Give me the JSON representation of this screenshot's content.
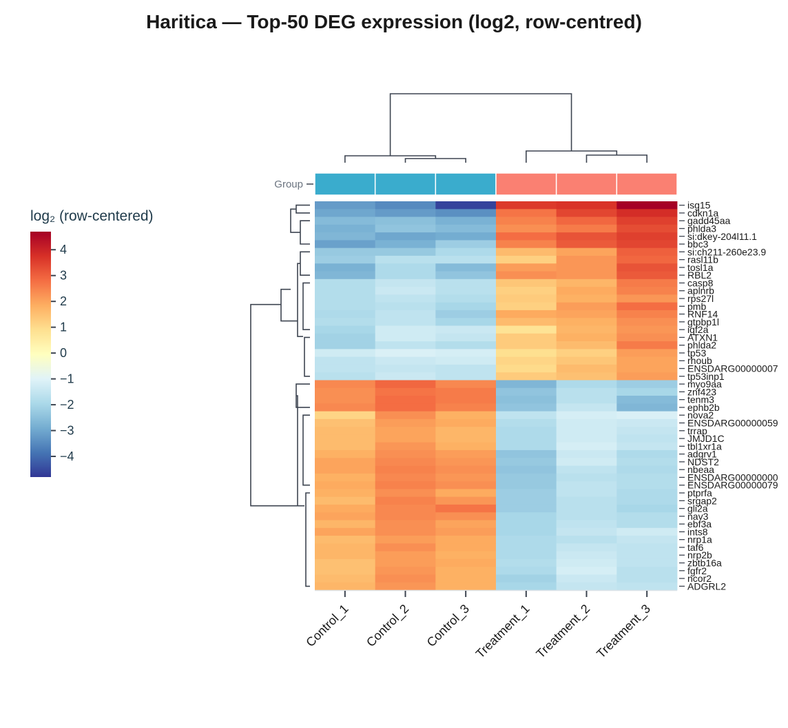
{
  "chart_data": {
    "type": "heatmap",
    "title": "Haritica — Top-50 DEG expression (log2, row-centred)",
    "colorbar": {
      "label": "log₂ (row-centered)",
      "range": [
        -4.8,
        4.7
      ],
      "ticks": [
        4,
        3,
        2,
        1,
        0,
        -1,
        -2,
        -3,
        -4
      ],
      "tick_labels": [
        "4",
        "3",
        "2",
        "1",
        "0",
        "−1",
        "−2",
        "−3",
        "−4"
      ],
      "colormap": "RdYlBu_r"
    },
    "annotation_row": {
      "label": "Group",
      "colors": {
        "Control": "#3aaccd",
        "Treatment": "#fa8072"
      },
      "assignments": [
        "Control",
        "Control",
        "Control",
        "Treatment",
        "Treatment",
        "Treatment"
      ]
    },
    "columns": [
      "Control_1",
      "Control_2",
      "Control_3",
      "Treatment_1",
      "Treatment_2",
      "Treatment_3"
    ],
    "row_labels": [
      "isg15",
      "cdkn1a",
      "gadd45aa",
      "phlda3",
      "si:dkey-204l11.1",
      "bbc3",
      "si:ch211-260e23.9",
      "rasl11b",
      "tosl1a",
      "RBL2",
      "casp8",
      "aplnrb",
      "rps27l",
      "pmb",
      "RNF14",
      "gtpbp1l",
      "igf2a",
      "ATXN1",
      "phlda2",
      "tp53",
      "rhoub",
      "ENSDARG00000007",
      "tp53inp1",
      "myo9aa",
      "znf423",
      "tenm3",
      "ephb2b",
      "nova2",
      "ENSDARG00000059",
      "trrap",
      "JMJD1C",
      "tbl1xr1a",
      "adgrv1",
      "NDST2",
      "nbeaa",
      "ENSDARG00000000",
      "ENSDARG00000079",
      "ptprfa",
      "srgap2",
      "gli2a",
      "nav3",
      "ebf3a",
      "ints8",
      "nrp1a",
      "taf6",
      "nrp2b",
      "zbtb16a",
      "fgfr2",
      "ncor2",
      "ADGRL2"
    ],
    "values": [
      [
        -3.2,
        -3.5,
        -4.6,
        3.6,
        3.7,
        4.7
      ],
      [
        -3.0,
        -3.2,
        -3.4,
        2.7,
        3.4,
        3.8
      ],
      [
        -2.6,
        -2.5,
        -2.8,
        2.5,
        2.9,
        3.5
      ],
      [
        -2.8,
        -2.4,
        -2.6,
        2.3,
        2.6,
        3.3
      ],
      [
        -2.7,
        -3.0,
        -2.9,
        2.8,
        3.2,
        3.5
      ],
      [
        -3.1,
        -2.8,
        -2.2,
        2.5,
        3.1,
        3.4
      ],
      [
        -2.3,
        -2.3,
        -1.9,
        1.6,
        2.0,
        3.0
      ],
      [
        -2.2,
        -1.7,
        -1.7,
        1.2,
        2.2,
        2.9
      ],
      [
        -2.8,
        -1.9,
        -2.6,
        2.1,
        2.2,
        3.2
      ],
      [
        -2.7,
        -1.9,
        -2.4,
        2.3,
        2.2,
        3.1
      ],
      [
        -1.8,
        -1.5,
        -1.7,
        1.4,
        1.7,
        2.6
      ],
      [
        -1.8,
        -1.4,
        -1.7,
        1.2,
        1.9,
        2.5
      ],
      [
        -1.8,
        -1.6,
        -1.8,
        1.3,
        1.8,
        2.2
      ],
      [
        -1.8,
        -1.7,
        -2.0,
        1.2,
        2.1,
        2.8
      ],
      [
        -1.9,
        -1.6,
        -2.2,
        1.9,
        2.0,
        2.5
      ],
      [
        -1.8,
        -1.6,
        -2.0,
        1.6,
        1.8,
        2.3
      ],
      [
        -2.0,
        -1.3,
        -1.4,
        0.8,
        1.7,
        2.2
      ],
      [
        -2.1,
        -1.3,
        -1.5,
        1.3,
        1.8,
        2.3
      ],
      [
        -2.1,
        -1.6,
        -1.8,
        1.3,
        1.6,
        2.6
      ],
      [
        -1.3,
        -1.1,
        -1.2,
        0.9,
        1.2,
        2.1
      ],
      [
        -1.6,
        -1.4,
        -1.3,
        1.1,
        1.4,
        2.0
      ],
      [
        -1.6,
        -1.5,
        -1.6,
        1.0,
        1.6,
        2.0
      ],
      [
        -1.7,
        -1.4,
        -1.6,
        1.3,
        1.5,
        2.1
      ],
      [
        2.4,
        2.9,
        2.4,
        -2.7,
        -1.9,
        -2.2
      ],
      [
        2.3,
        2.7,
        2.6,
        -2.4,
        -1.7,
        -2.0
      ],
      [
        2.3,
        2.8,
        2.6,
        -2.5,
        -1.7,
        -2.6
      ],
      [
        2.4,
        2.8,
        2.5,
        -2.4,
        -1.5,
        -2.7
      ],
      [
        1.1,
        2.3,
        1.8,
        -1.6,
        -1.2,
        -1.1
      ],
      [
        1.5,
        2.1,
        1.9,
        -1.8,
        -1.3,
        -1.4
      ],
      [
        1.6,
        2.0,
        1.7,
        -1.9,
        -1.3,
        -1.5
      ],
      [
        1.6,
        2.0,
        1.7,
        -1.9,
        -1.3,
        -1.6
      ],
      [
        1.6,
        2.2,
        1.8,
        -1.9,
        -1.2,
        -1.5
      ],
      [
        1.8,
        2.3,
        2.1,
        -2.4,
        -1.4,
        -1.9
      ],
      [
        2.0,
        2.4,
        2.2,
        -2.3,
        -1.3,
        -1.8
      ],
      [
        2.0,
        2.5,
        2.3,
        -2.4,
        -1.6,
        -1.9
      ],
      [
        1.8,
        2.4,
        2.2,
        -2.3,
        -1.7,
        -1.8
      ],
      [
        1.9,
        2.5,
        2.3,
        -2.3,
        -1.6,
        -1.8
      ],
      [
        1.8,
        2.3,
        1.9,
        -2.2,
        -1.6,
        -1.9
      ],
      [
        1.6,
        2.5,
        2.2,
        -2.2,
        -1.7,
        -1.9
      ],
      [
        1.9,
        2.4,
        2.7,
        -2.2,
        -1.7,
        -2.0
      ],
      [
        2.0,
        2.4,
        2.3,
        -2.0,
        -1.7,
        -1.8
      ],
      [
        1.7,
        2.3,
        2.0,
        -2.0,
        -1.6,
        -1.8
      ],
      [
        2.0,
        2.3,
        2.1,
        -2.0,
        -1.5,
        -1.3
      ],
      [
        1.6,
        2.1,
        1.9,
        -1.9,
        -1.7,
        -1.5
      ],
      [
        1.7,
        2.3,
        1.9,
        -1.9,
        -1.5,
        -1.6
      ],
      [
        1.7,
        2.1,
        1.8,
        -1.9,
        -1.4,
        -1.6
      ],
      [
        1.5,
        2.1,
        1.9,
        -1.8,
        -1.3,
        -1.6
      ],
      [
        1.5,
        2.2,
        1.8,
        -1.9,
        -1.2,
        -1.7
      ],
      [
        1.6,
        2.3,
        1.8,
        -2.1,
        -1.4,
        -1.7
      ],
      [
        1.7,
        2.2,
        1.8,
        -2.0,
        -1.5,
        -1.6
      ]
    ]
  }
}
